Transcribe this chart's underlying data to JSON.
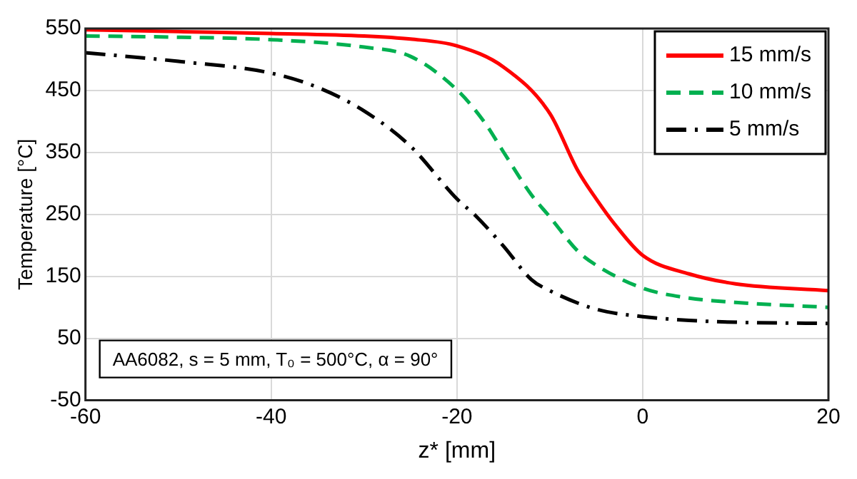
{
  "chart_data": {
    "type": "line",
    "xlabel": "z* [mm]",
    "ylabel": "Temperature [°C]",
    "xlim": [
      -60,
      20
    ],
    "xticks": [
      -60,
      -40,
      -20,
      0,
      20
    ],
    "ylim": [
      -50,
      550
    ],
    "yticks": [
      -50,
      50,
      150,
      250,
      350,
      450,
      550
    ],
    "grid": true,
    "legend": "top right",
    "marker": "none",
    "annotations": [
      "AA6082, s = 5 mm, T₀ = 500°C, α = 90°"
    ],
    "series": [
      {
        "name": "15 mm/s",
        "color": "#ff0000",
        "line_style": "solid",
        "x": [
          -60,
          -50,
          -40,
          -30,
          -25,
          -20,
          -15,
          -10,
          -7,
          -5,
          -3,
          0,
          5,
          10,
          20
        ],
        "values": [
          548,
          545,
          542,
          538,
          533,
          522,
          488,
          413,
          321,
          275,
          234,
          184,
          154,
          138,
          127
        ]
      },
      {
        "name": "10 mm/s",
        "color": "#00b050",
        "line_style": "dashed",
        "x": [
          -60,
          -50,
          -40,
          -30,
          -25,
          -20,
          -17,
          -15,
          -12,
          -10,
          -7,
          -5,
          0,
          5,
          10,
          20
        ],
        "values": [
          538,
          536,
          532,
          520,
          505,
          451,
          398,
          351,
          282,
          246,
          191,
          168,
          131,
          115,
          108,
          100
        ]
      },
      {
        "name": "5 mm/s",
        "color": "#000000",
        "line_style": "dashdot",
        "x": [
          -60,
          -50,
          -40,
          -35,
          -30,
          -25,
          -20,
          -18,
          -15,
          -12,
          -10,
          -5,
          0,
          5,
          10,
          20
        ],
        "values": [
          511,
          497,
          478,
          455,
          417,
          360,
          275,
          248,
          199,
          145,
          127,
          97,
          85,
          79,
          76,
          74
        ]
      }
    ]
  }
}
